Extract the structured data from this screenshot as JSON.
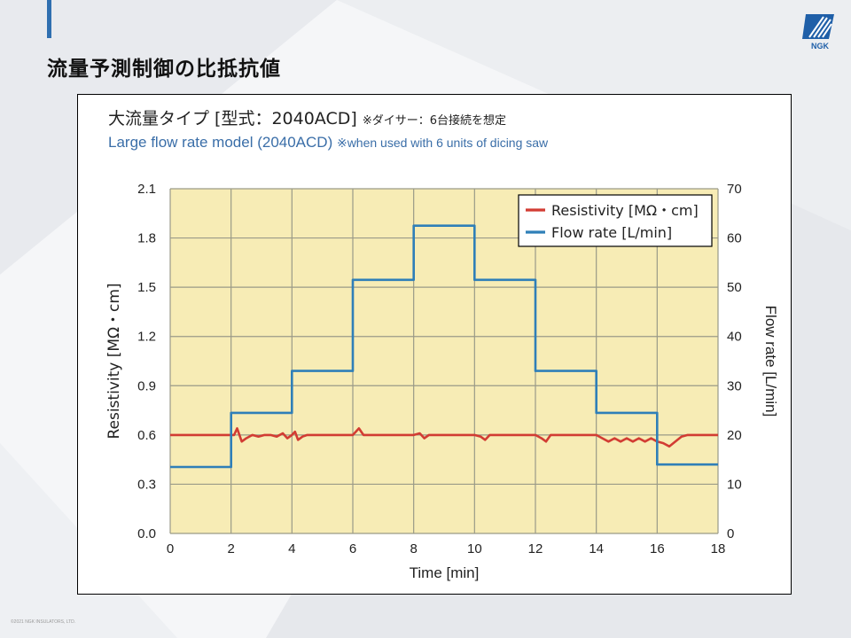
{
  "page": {
    "title": "流量予測制御の比抵抗値",
    "logo_text": "NGK",
    "footer": "©2021 NGK INSULATORS, LTD."
  },
  "colors": {
    "accent": "#2f6fb0",
    "plot_bg": "#f7ecb5",
    "grid": "#9a9a88",
    "resistivity": "#d23c33",
    "flow": "#2f7fb8"
  },
  "chart_data": {
    "type": "line",
    "title_jp": "大流量タイプ [型式：2040ACD]",
    "title_jp_note": "※ダイサー：6台接続を想定",
    "title_en": "Large flow rate model (2040ACD)",
    "title_en_note": "※when used with 6 units of dicing saw",
    "xlabel": "Time [min]",
    "ylabel_left": "Resistivity [MΩ・cm]",
    "ylabel_right": "Flow rate [L/min]",
    "xlim": [
      0,
      18
    ],
    "ylim_left": [
      0,
      2.1
    ],
    "ylim_right": [
      0,
      70
    ],
    "x_ticks": [
      "0",
      "2",
      "4",
      "6",
      "8",
      "10",
      "12",
      "14",
      "16",
      "18"
    ],
    "y_left_ticks": [
      "0.0",
      "0.3",
      "0.6",
      "0.9",
      "1.2",
      "1.5",
      "1.8",
      "2.1"
    ],
    "y_right_ticks": [
      "0",
      "10",
      "20",
      "30",
      "40",
      "50",
      "60",
      "70"
    ],
    "grid": true,
    "legend_position": "top-right",
    "series": [
      {
        "name": "Resistivity [MΩ・cm]",
        "axis": "left",
        "color": "#d23c33",
        "x": [
          0,
          2.0,
          2.1,
          2.2,
          2.35,
          2.5,
          2.7,
          2.9,
          3.1,
          3.3,
          3.5,
          3.7,
          3.85,
          4.0,
          4.1,
          4.2,
          4.35,
          4.5,
          4.7,
          5.0,
          5.5,
          6.0,
          6.1,
          6.2,
          6.35,
          6.5,
          7.0,
          7.5,
          8.0,
          8.2,
          8.35,
          8.5,
          9.0,
          9.5,
          10.0,
          10.2,
          10.35,
          10.5,
          11.0,
          11.5,
          12.0,
          12.2,
          12.35,
          12.5,
          13.0,
          13.5,
          14.0,
          14.2,
          14.4,
          14.6,
          14.8,
          15.0,
          15.2,
          15.4,
          15.6,
          15.8,
          16.0,
          16.2,
          16.4,
          16.6,
          16.8,
          17.0,
          17.5,
          18
        ],
        "values": [
          0.6,
          0.6,
          0.6,
          0.64,
          0.56,
          0.58,
          0.6,
          0.59,
          0.6,
          0.6,
          0.59,
          0.61,
          0.58,
          0.6,
          0.62,
          0.57,
          0.59,
          0.6,
          0.6,
          0.6,
          0.6,
          0.6,
          0.62,
          0.64,
          0.6,
          0.6,
          0.6,
          0.6,
          0.6,
          0.61,
          0.58,
          0.6,
          0.6,
          0.6,
          0.6,
          0.59,
          0.57,
          0.6,
          0.6,
          0.6,
          0.6,
          0.58,
          0.56,
          0.6,
          0.6,
          0.6,
          0.6,
          0.58,
          0.56,
          0.58,
          0.56,
          0.58,
          0.56,
          0.58,
          0.56,
          0.58,
          0.56,
          0.55,
          0.53,
          0.56,
          0.59,
          0.6,
          0.6,
          0.6
        ]
      },
      {
        "name": "Flow rate [L/min]",
        "axis": "right",
        "color": "#2f7fb8",
        "x": [
          0,
          2.0,
          2.0,
          4.0,
          4.0,
          6.0,
          6.0,
          8.0,
          8.0,
          10.0,
          10.0,
          12.0,
          12.0,
          14.0,
          14.0,
          16.0,
          16.0,
          18
        ],
        "values": [
          13.5,
          13.5,
          24.5,
          24.5,
          33,
          33,
          51.5,
          51.5,
          62.5,
          62.5,
          51.5,
          51.5,
          33,
          33,
          24.5,
          24.5,
          14,
          14
        ]
      }
    ]
  }
}
